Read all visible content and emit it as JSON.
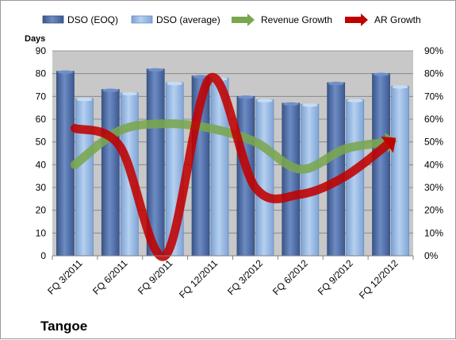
{
  "chart_data": {
    "type": "bar",
    "ylabel": "Days",
    "company": "Tangoe",
    "categories": [
      "FQ 3/2011",
      "FQ 6/2011",
      "FQ 9/2011",
      "FQ 12/2011",
      "FQ 3/2012",
      "FQ 6/2012",
      "FQ 9/2012",
      "FQ 12/2012"
    ],
    "ylim": [
      0,
      90
    ],
    "y_ticks": [
      "0",
      "10",
      "20",
      "30",
      "40",
      "50",
      "60",
      "70",
      "80",
      "90"
    ],
    "y2lim": [
      0,
      90
    ],
    "y2_ticks": [
      "0%",
      "10%",
      "20%",
      "30%",
      "40%",
      "50%",
      "60%",
      "70%",
      "80%",
      "90%"
    ],
    "legend_position": "top",
    "grid": true,
    "series": [
      {
        "name": "DSO (EOQ)",
        "kind": "bar",
        "values": [
          81,
          73,
          82,
          79,
          70,
          67,
          76,
          80
        ],
        "color": "#4f6fa8"
      },
      {
        "name": "DSO (average)",
        "kind": "bar",
        "values": [
          69,
          71.5,
          76,
          78,
          68.5,
          66.5,
          68.5,
          74.5
        ],
        "color": "#8fb4e3"
      },
      {
        "name": "Revenue Growth",
        "kind": "line",
        "axis": "right",
        "values": [
          40,
          55,
          58,
          56,
          50,
          38,
          47,
          50
        ],
        "color": "#7aa64e"
      },
      {
        "name": "AR Growth",
        "kind": "line",
        "axis": "right",
        "values": [
          56,
          48,
          0,
          78,
          30,
          27,
          35,
          50
        ],
        "color": "#c00000"
      }
    ]
  }
}
